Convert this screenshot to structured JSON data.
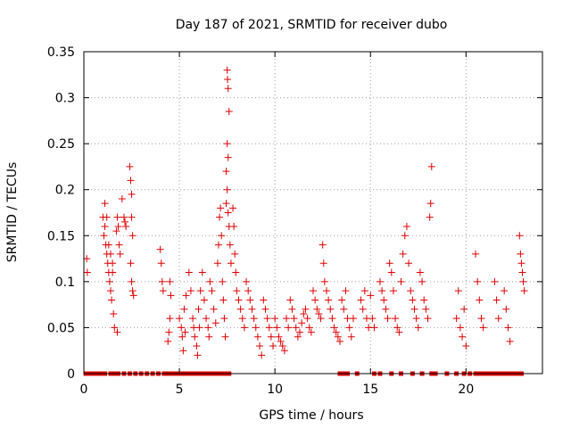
{
  "chart_data": {
    "type": "scatter",
    "title": "Day 187 of 2021, SRMTID for receiver dubo",
    "xlabel": "GPS time / hours",
    "ylabel": "SRMTID / TECUs",
    "xlim": [
      0,
      24
    ],
    "ylim": [
      0,
      0.35
    ],
    "xticks": [
      0,
      5,
      10,
      15,
      20
    ],
    "xtick_labels": [
      "0",
      "5",
      "10",
      "15",
      "20"
    ],
    "yticks": [
      0,
      0.05,
      0.1,
      0.15,
      0.2,
      0.25,
      0.3,
      0.35
    ],
    "ytick_labels": [
      "0",
      "0.05",
      "0.1",
      "0.15",
      "0.2",
      "0.25",
      "0.3",
      "0.35"
    ],
    "grid": true,
    "marker": "+",
    "color": "#dd0000",
    "series": [
      {
        "name": "SRMTID",
        "points": [
          [
            0.15,
            0.125
          ],
          [
            0.18,
            0.11
          ],
          [
            1.0,
            0.17
          ],
          [
            1.05,
            0.15
          ],
          [
            1.1,
            0.16
          ],
          [
            1.15,
            0.14
          ],
          [
            1.2,
            0.13
          ],
          [
            1.25,
            0.12
          ],
          [
            1.3,
            0.11
          ],
          [
            1.35,
            0.1
          ],
          [
            1.4,
            0.09
          ],
          [
            1.45,
            0.08
          ],
          [
            1.5,
            0.12
          ],
          [
            1.55,
            0.065
          ],
          [
            1.6,
            0.05
          ],
          [
            1.1,
            0.185
          ],
          [
            1.2,
            0.17
          ],
          [
            1.3,
            0.14
          ],
          [
            1.4,
            0.13
          ],
          [
            1.5,
            0.11
          ],
          [
            1.7,
            0.155
          ],
          [
            1.75,
            0.17
          ],
          [
            1.8,
            0.16
          ],
          [
            1.85,
            0.14
          ],
          [
            1.9,
            0.13
          ],
          [
            1.75,
            0.045
          ],
          [
            2.0,
            0.19
          ],
          [
            2.1,
            0.17
          ],
          [
            2.15,
            0.165
          ],
          [
            2.2,
            0.16
          ],
          [
            2.4,
            0.225
          ],
          [
            2.45,
            0.21
          ],
          [
            2.5,
            0.195
          ],
          [
            2.5,
            0.17
          ],
          [
            2.55,
            0.15
          ],
          [
            2.45,
            0.12
          ],
          [
            2.5,
            0.1
          ],
          [
            2.55,
            0.09
          ],
          [
            2.6,
            0.085
          ],
          [
            4.0,
            0.135
          ],
          [
            4.05,
            0.12
          ],
          [
            4.1,
            0.1
          ],
          [
            4.15,
            0.09
          ],
          [
            4.5,
            0.1
          ],
          [
            4.55,
            0.085
          ],
          [
            4.5,
            0.06
          ],
          [
            4.45,
            0.045
          ],
          [
            4.4,
            0.035
          ],
          [
            5.0,
            0.06
          ],
          [
            5.1,
            0.05
          ],
          [
            5.15,
            0.04
          ],
          [
            5.2,
            0.025
          ],
          [
            5.25,
            0.07
          ],
          [
            5.3,
            0.045
          ],
          [
            5.35,
            0.085
          ],
          [
            5.5,
            0.11
          ],
          [
            5.6,
            0.09
          ],
          [
            5.7,
            0.06
          ],
          [
            5.75,
            0.05
          ],
          [
            5.8,
            0.04
          ],
          [
            5.9,
            0.03
          ],
          [
            5.95,
            0.02
          ],
          [
            6.0,
            0.07
          ],
          [
            6.05,
            0.05
          ],
          [
            6.1,
            0.09
          ],
          [
            6.2,
            0.11
          ],
          [
            6.3,
            0.08
          ],
          [
            6.4,
            0.06
          ],
          [
            6.5,
            0.05
          ],
          [
            6.55,
            0.04
          ],
          [
            6.6,
            0.1
          ],
          [
            6.7,
            0.09
          ],
          [
            6.8,
            0.07
          ],
          [
            6.9,
            0.055
          ],
          [
            7.0,
            0.12
          ],
          [
            7.05,
            0.14
          ],
          [
            7.1,
            0.17
          ],
          [
            7.15,
            0.18
          ],
          [
            7.2,
            0.15
          ],
          [
            7.25,
            0.1
          ],
          [
            7.3,
            0.08
          ],
          [
            7.35,
            0.06
          ],
          [
            7.4,
            0.04
          ],
          [
            7.5,
            0.33
          ],
          [
            7.52,
            0.32
          ],
          [
            7.55,
            0.31
          ],
          [
            7.6,
            0.285
          ],
          [
            7.5,
            0.25
          ],
          [
            7.55,
            0.235
          ],
          [
            7.45,
            0.22
          ],
          [
            7.5,
            0.2
          ],
          [
            7.45,
            0.185
          ],
          [
            7.55,
            0.175
          ],
          [
            7.6,
            0.16
          ],
          [
            7.65,
            0.14
          ],
          [
            7.7,
            0.12
          ],
          [
            7.8,
            0.18
          ],
          [
            7.85,
            0.16
          ],
          [
            7.9,
            0.13
          ],
          [
            7.95,
            0.11
          ],
          [
            8.0,
            0.09
          ],
          [
            8.1,
            0.08
          ],
          [
            8.2,
            0.07
          ],
          [
            8.3,
            0.06
          ],
          [
            8.4,
            0.05
          ],
          [
            8.5,
            0.1
          ],
          [
            8.6,
            0.09
          ],
          [
            8.7,
            0.08
          ],
          [
            8.8,
            0.07
          ],
          [
            8.9,
            0.06
          ],
          [
            9.0,
            0.05
          ],
          [
            9.1,
            0.04
          ],
          [
            9.2,
            0.03
          ],
          [
            9.3,
            0.02
          ],
          [
            9.4,
            0.08
          ],
          [
            9.5,
            0.07
          ],
          [
            9.6,
            0.06
          ],
          [
            9.7,
            0.05
          ],
          [
            9.8,
            0.04
          ],
          [
            9.9,
            0.03
          ],
          [
            10.0,
            0.06
          ],
          [
            10.1,
            0.05
          ],
          [
            10.2,
            0.04
          ],
          [
            10.3,
            0.035
          ],
          [
            10.4,
            0.03
          ],
          [
            10.5,
            0.025
          ],
          [
            10.6,
            0.06
          ],
          [
            10.7,
            0.05
          ],
          [
            10.8,
            0.08
          ],
          [
            10.9,
            0.07
          ],
          [
            11.0,
            0.06
          ],
          [
            11.1,
            0.05
          ],
          [
            11.2,
            0.04
          ],
          [
            11.3,
            0.045
          ],
          [
            11.4,
            0.055
          ],
          [
            11.5,
            0.065
          ],
          [
            11.6,
            0.07
          ],
          [
            11.7,
            0.06
          ],
          [
            11.8,
            0.05
          ],
          [
            11.9,
            0.045
          ],
          [
            12.0,
            0.09
          ],
          [
            12.1,
            0.08
          ],
          [
            12.2,
            0.07
          ],
          [
            12.3,
            0.065
          ],
          [
            12.4,
            0.06
          ],
          [
            12.5,
            0.14
          ],
          [
            12.55,
            0.12
          ],
          [
            12.6,
            0.1
          ],
          [
            12.7,
            0.09
          ],
          [
            12.8,
            0.08
          ],
          [
            12.9,
            0.07
          ],
          [
            13.0,
            0.06
          ],
          [
            13.1,
            0.05
          ],
          [
            13.2,
            0.045
          ],
          [
            13.3,
            0.04
          ],
          [
            13.4,
            0.035
          ],
          [
            13.5,
            0.08
          ],
          [
            13.6,
            0.07
          ],
          [
            13.7,
            0.09
          ],
          [
            13.8,
            0.06
          ],
          [
            13.9,
            0.05
          ],
          [
            14.0,
            0.04
          ],
          [
            14.1,
            0.06
          ],
          [
            14.5,
            0.08
          ],
          [
            14.6,
            0.07
          ],
          [
            14.7,
            0.09
          ],
          [
            14.8,
            0.06
          ],
          [
            14.9,
            0.05
          ],
          [
            15.0,
            0.085
          ],
          [
            15.1,
            0.06
          ],
          [
            15.2,
            0.05
          ],
          [
            15.5,
            0.1
          ],
          [
            15.6,
            0.09
          ],
          [
            15.7,
            0.08
          ],
          [
            15.8,
            0.07
          ],
          [
            15.9,
            0.06
          ],
          [
            16.0,
            0.12
          ],
          [
            16.1,
            0.11
          ],
          [
            16.2,
            0.09
          ],
          [
            16.3,
            0.06
          ],
          [
            16.4,
            0.05
          ],
          [
            16.5,
            0.045
          ],
          [
            16.6,
            0.1
          ],
          [
            16.7,
            0.13
          ],
          [
            16.8,
            0.15
          ],
          [
            16.9,
            0.16
          ],
          [
            17.0,
            0.12
          ],
          [
            17.1,
            0.09
          ],
          [
            17.2,
            0.08
          ],
          [
            17.3,
            0.07
          ],
          [
            17.4,
            0.06
          ],
          [
            17.5,
            0.05
          ],
          [
            17.6,
            0.11
          ],
          [
            17.7,
            0.1
          ],
          [
            17.8,
            0.08
          ],
          [
            17.9,
            0.07
          ],
          [
            18.0,
            0.06
          ],
          [
            18.1,
            0.17
          ],
          [
            18.15,
            0.185
          ],
          [
            18.2,
            0.225
          ],
          [
            19.5,
            0.06
          ],
          [
            19.6,
            0.09
          ],
          [
            19.7,
            0.05
          ],
          [
            19.8,
            0.04
          ],
          [
            19.9,
            0.07
          ],
          [
            20.0,
            0.03
          ],
          [
            20.5,
            0.13
          ],
          [
            20.6,
            0.1
          ],
          [
            20.7,
            0.08
          ],
          [
            20.8,
            0.06
          ],
          [
            20.9,
            0.05
          ],
          [
            21.5,
            0.1
          ],
          [
            21.6,
            0.08
          ],
          [
            21.7,
            0.06
          ],
          [
            22.0,
            0.09
          ],
          [
            22.1,
            0.07
          ],
          [
            22.2,
            0.05
          ],
          [
            22.3,
            0.035
          ],
          [
            22.8,
            0.15
          ],
          [
            22.85,
            0.13
          ],
          [
            22.9,
            0.12
          ],
          [
            22.95,
            0.11
          ],
          [
            23.0,
            0.1
          ],
          [
            23.05,
            0.09
          ]
        ],
        "zero_markers_x": [
          0.1,
          0.3,
          0.5,
          0.7,
          0.9,
          1.1,
          1.4,
          1.6,
          1.8,
          2.1,
          2.4,
          2.7,
          3.0,
          3.3,
          3.6,
          3.9,
          4.2,
          4.4,
          4.6,
          4.8,
          5.0,
          5.2,
          5.4,
          5.6,
          5.8,
          6.0,
          6.2,
          6.4,
          6.6,
          6.8,
          7.0,
          7.2,
          7.4,
          7.6,
          13.4,
          13.6,
          13.8,
          14.3,
          15.2,
          15.5,
          16.1,
          16.6,
          17.2,
          17.7,
          18.2,
          18.4,
          19.0,
          19.5,
          19.9,
          20.2,
          20.5,
          20.7,
          20.9,
          21.1,
          21.3,
          21.5,
          21.7,
          21.9,
          22.1,
          22.3,
          22.5,
          22.7,
          22.9
        ]
      }
    ]
  }
}
